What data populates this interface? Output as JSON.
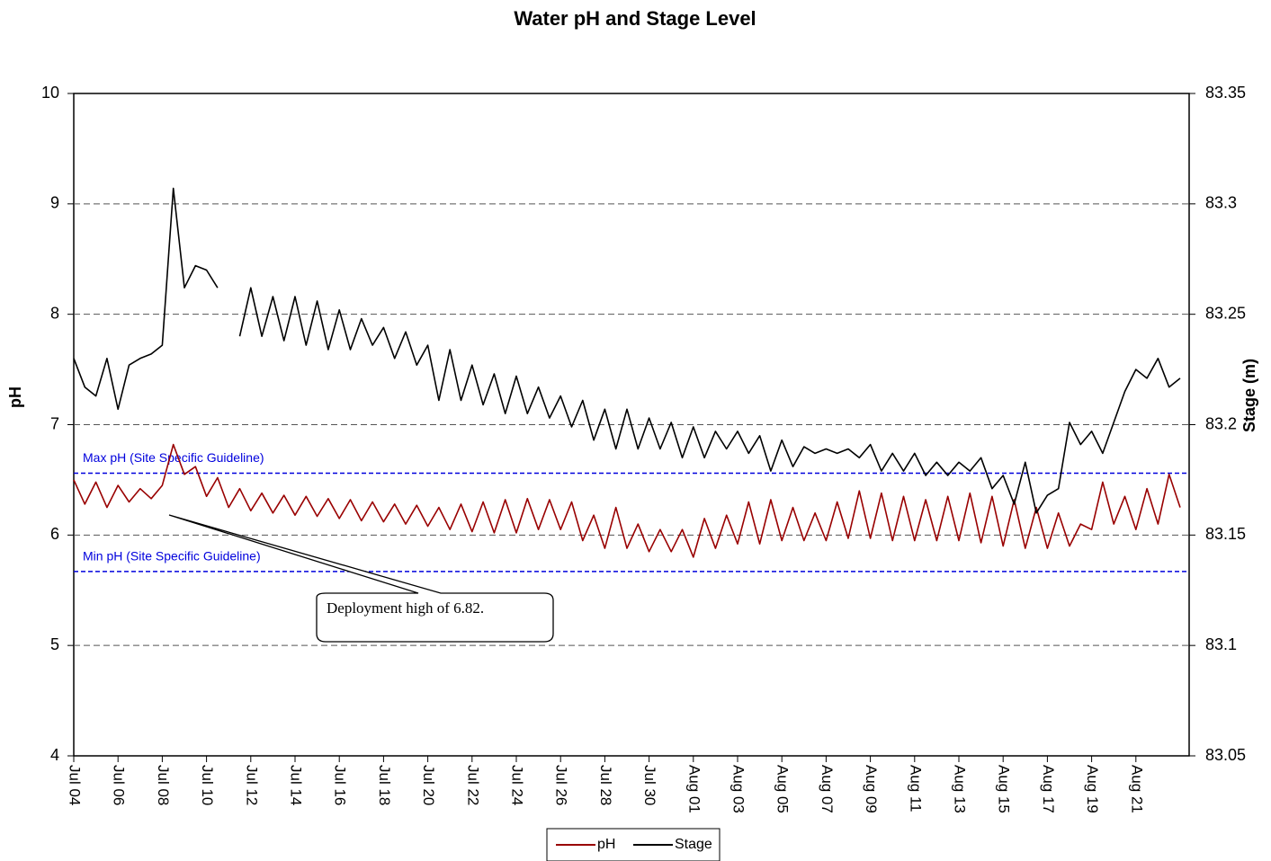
{
  "chart_data": {
    "type": "line",
    "title": "Water pH and Stage Level",
    "ylabel": "pH",
    "y2label": "Stage (m)",
    "categories": [
      "Jul 04",
      null,
      null,
      null,
      "Jul 06",
      null,
      null,
      null,
      "Jul 08",
      null,
      null,
      null,
      "Jul 10",
      null,
      null,
      null,
      "Jul 12",
      null,
      null,
      null,
      "Jul 14",
      null,
      null,
      null,
      "Jul 16",
      null,
      null,
      null,
      "Jul 18",
      null,
      null,
      null,
      "Jul 20",
      null,
      null,
      null,
      "Jul 22",
      null,
      null,
      null,
      "Jul 24",
      null,
      null,
      null,
      "Jul 26",
      null,
      null,
      null,
      "Jul 28",
      null,
      null,
      null,
      "Jul 30",
      null,
      null,
      null,
      "Aug 01",
      null,
      null,
      null,
      "Aug 03",
      null,
      null,
      null,
      "Aug 05",
      null,
      null,
      null,
      "Aug 07",
      null,
      null,
      null,
      "Aug 09",
      null,
      null,
      null,
      "Aug 11",
      null,
      null,
      null,
      "Aug 13",
      null,
      null,
      null,
      "Aug 15",
      null,
      null,
      null,
      "Aug 17",
      null,
      null,
      null,
      "Aug 19",
      null,
      null,
      null,
      "Aug 21",
      null,
      null,
      null,
      null
    ],
    "ylim": [
      4,
      10
    ],
    "yticks": [
      4,
      5,
      6,
      7,
      8,
      9,
      10
    ],
    "y2lim": [
      83.05,
      83.35
    ],
    "y2ticks": [
      83.05,
      83.1,
      83.15,
      83.2,
      83.25,
      83.3,
      83.35
    ],
    "grid": true,
    "legend": "bottom",
    "series": [
      {
        "name": "pH",
        "color": "#990000",
        "values": [
          6.5,
          6.28,
          6.48,
          6.25,
          6.45,
          6.3,
          6.42,
          6.33,
          6.45,
          6.82,
          6.55,
          6.62,
          6.35,
          6.52,
          6.25,
          6.42,
          6.22,
          6.38,
          6.2,
          6.36,
          6.18,
          6.35,
          6.17,
          6.33,
          6.15,
          6.32,
          6.13,
          6.3,
          6.12,
          6.28,
          6.1,
          6.27,
          6.08,
          6.25,
          6.05,
          6.28,
          6.03,
          6.3,
          6.02,
          6.32,
          6.02,
          6.33,
          6.05,
          6.32,
          6.05,
          6.3,
          5.95,
          6.18,
          5.88,
          6.25,
          5.88,
          6.1,
          5.85,
          6.05,
          5.85,
          6.05,
          5.8,
          6.15,
          5.88,
          6.18,
          5.92,
          6.3,
          5.92,
          6.32,
          5.95,
          6.25,
          5.95,
          6.2,
          5.95,
          6.3,
          5.97,
          6.4,
          5.97,
          6.38,
          5.95,
          6.35,
          5.95,
          6.32,
          5.95,
          6.35,
          5.95,
          6.38,
          5.93,
          6.35,
          5.9,
          6.32,
          5.88,
          6.25,
          5.88,
          6.2,
          5.9,
          6.1,
          6.05,
          6.48,
          6.1,
          6.35,
          6.05,
          6.42,
          6.1,
          6.55,
          6.25
        ]
      },
      {
        "name": "Stage",
        "color": "#000000",
        "axis": "y2",
        "values": [
          83.23,
          83.217,
          83.213,
          83.23,
          83.207,
          83.227,
          83.23,
          83.232,
          83.236,
          83.307,
          83.262,
          83.272,
          83.27,
          83.262,
          null,
          83.24,
          83.262,
          83.24,
          83.258,
          83.238,
          83.258,
          83.236,
          83.256,
          83.234,
          83.252,
          83.234,
          83.248,
          83.236,
          83.244,
          83.23,
          83.242,
          83.227,
          83.236,
          83.211,
          83.234,
          83.211,
          83.227,
          83.209,
          83.223,
          83.205,
          83.222,
          83.205,
          83.217,
          83.203,
          83.213,
          83.199,
          83.211,
          83.193,
          83.207,
          83.189,
          83.207,
          83.189,
          83.203,
          83.189,
          83.201,
          83.185,
          83.199,
          83.185,
          83.197,
          83.189,
          83.197,
          83.187,
          83.195,
          83.179,
          83.193,
          83.181,
          83.19,
          83.187,
          83.189,
          83.187,
          83.189,
          83.185,
          83.191,
          83.179,
          83.187,
          83.179,
          83.187,
          83.177,
          83.183,
          83.177,
          83.183,
          83.179,
          83.185,
          83.171,
          83.177,
          83.164,
          83.183,
          83.16,
          83.168,
          83.171,
          83.201,
          83.191,
          83.197,
          83.187,
          83.201,
          83.215,
          83.225,
          83.221,
          83.23,
          83.217,
          83.221
        ]
      }
    ],
    "hlines": [
      {
        "label": "Max pH  (Site Specific Guideline)",
        "value": 6.56,
        "color": "#0000dd"
      },
      {
        "label": "Min pH  (Site Specific Guideline)",
        "value": 5.67,
        "color": "#0000dd"
      }
    ],
    "annotation": "Deployment high of 6.82."
  }
}
